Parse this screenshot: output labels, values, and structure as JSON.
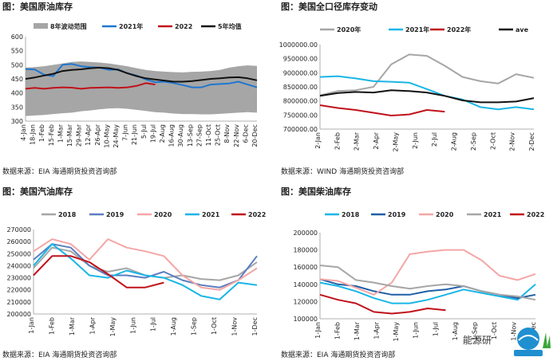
{
  "colors": {
    "bg": "#ffffff",
    "axis": "#999999",
    "grid": "#eeeeee"
  },
  "charts": [
    {
      "id": "c1",
      "title": "图：美国原油库存",
      "source": "数据来源：EIA  海通期货投资咨询部",
      "type": "line",
      "ylim": [
        300,
        600
      ],
      "yticks": [
        300,
        350,
        400,
        450,
        500,
        550,
        600
      ],
      "xlabels": [
        "4-Jan",
        "18-Jan",
        "1-Feb",
        "15-Feb",
        "1-Mar",
        "15-Mar",
        "29-Mar",
        "12-Apr",
        "26-Apr",
        "10-May",
        "24-May",
        "7-Jun",
        "21-Jun",
        "5-Jul",
        "19-Jul",
        "2-Aug",
        "16-Aug",
        "30-Aug",
        "13-Sep",
        "27-Sep",
        "11-Oct",
        "25-Oct",
        "8-Nov",
        "22-Nov",
        "6-Dec",
        "20-Dec"
      ],
      "xlabel_rotate": true,
      "band": {
        "name": "8年波动范围",
        "color": "#a6a6a6",
        "lo": [
          318,
          320,
          322,
          325,
          328,
          330,
          335,
          338,
          342,
          345,
          346,
          344,
          340,
          336,
          332,
          330,
          327,
          325,
          325,
          324,
          324,
          326,
          328,
          330,
          332,
          330
        ],
        "hi": [
          490,
          492,
          495,
          500,
          505,
          510,
          512,
          510,
          508,
          505,
          500,
          495,
          488,
          482,
          478,
          476,
          474,
          473,
          475,
          476,
          478,
          482,
          490,
          495,
          498,
          496
        ]
      },
      "series": [
        {
          "name": "2021年",
          "color": "#1f77d0",
          "width": 2,
          "values": [
            485,
            483,
            465,
            460,
            500,
            503,
            495,
            492,
            490,
            482,
            484,
            470,
            462,
            448,
            438,
            440,
            435,
            428,
            420,
            420,
            430,
            432,
            434,
            440,
            430,
            420
          ]
        },
        {
          "name": "2022",
          "color": "#c0121b",
          "width": 2,
          "values": [
            415,
            418,
            415,
            418,
            420,
            419,
            415,
            418,
            419,
            420,
            418,
            420,
            425,
            435,
            430
          ]
        },
        {
          "name": "5年均值",
          "color": "#111111",
          "width": 2,
          "values": [
            450,
            455,
            462,
            468,
            478,
            482,
            484,
            488,
            490,
            488,
            482,
            470,
            460,
            452,
            448,
            444,
            440,
            440,
            442,
            446,
            450,
            452,
            455,
            456,
            452,
            445
          ]
        }
      ],
      "legend": [
        "8年波动范围",
        "2021年",
        "2022",
        "5年均值"
      ]
    },
    {
      "id": "c2",
      "title": "图：美国全口径库存变动",
      "source": "数据来源：WIND  海通期货投资咨询部",
      "type": "line",
      "ylim": [
        700000,
        1000000
      ],
      "yticks": [
        700000,
        750000,
        800000,
        850000,
        900000,
        950000,
        1000000
      ],
      "ytickLabels": [
        "700000.00",
        "750000.00",
        "800000.00",
        "850000.00",
        "900000.00",
        "950000.00",
        "1000000.00"
      ],
      "xlabels": [
        "2-Jan",
        "2-Feb",
        "2-Mar",
        "2-Apr",
        "2-May",
        "2-Jun",
        "2-Jul",
        "2-Aug",
        "2-Sep",
        "2-Oct",
        "2-Nov",
        "2-Dec"
      ],
      "xlabel_rotate": true,
      "series": [
        {
          "name": "2020年",
          "color": "#a6a6a6",
          "width": 2,
          "values": [
            820000,
            835000,
            838000,
            850000,
            930000,
            965000,
            960000,
            925000,
            885000,
            870000,
            862000,
            895000,
            882000
          ]
        },
        {
          "name": "2021年",
          "color": "#19b6e6",
          "width": 2,
          "values": [
            885000,
            888000,
            880000,
            870000,
            868000,
            865000,
            842000,
            818000,
            805000,
            778000,
            770000,
            778000,
            770000
          ]
        },
        {
          "name": "2022年",
          "color": "#c0121b",
          "width": 2,
          "values": [
            785000,
            775000,
            768000,
            758000,
            748000,
            752000,
            768000,
            762000
          ]
        },
        {
          "name": "ave",
          "color": "#111111",
          "width": 2,
          "values": [
            818000,
            828000,
            832000,
            830000,
            838000,
            835000,
            830000,
            818000,
            802000,
            795000,
            795000,
            798000,
            810000
          ]
        }
      ],
      "legend": [
        "2020年",
        "2021年",
        "2022年",
        "ave"
      ]
    },
    {
      "id": "c3",
      "title": "图：美国汽油库存",
      "source": "数据来源：EIA  海通期货投资咨询部",
      "type": "line",
      "ylim": [
        200000,
        270000
      ],
      "yticks": [
        200000,
        210000,
        220000,
        230000,
        240000,
        250000,
        260000,
        270000
      ],
      "xlabels": [
        "1-Jan",
        "1-Feb",
        "1-Mar",
        "1-Apr",
        "1-May",
        "1-Jun",
        "1-Jul",
        "1-Aug",
        "1-Sep",
        "1-Oct",
        "1-Nov",
        "1-Dec"
      ],
      "xlabel_rotate": true,
      "series": [
        {
          "name": "2018",
          "color": "#a6a6a6",
          "width": 2,
          "values": [
            238000,
            255000,
            252000,
            240000,
            235000,
            238000,
            232000,
            230000,
            232000,
            229000,
            228000,
            232000,
            243000
          ]
        },
        {
          "name": "2019",
          "color": "#5b7ec0",
          "width": 2,
          "values": [
            245000,
            258000,
            255000,
            240000,
            232000,
            232000,
            230000,
            235000,
            228000,
            224000,
            222000,
            228000,
            248000
          ]
        },
        {
          "name": "2020",
          "color": "#f4a6a6",
          "width": 2,
          "values": [
            252000,
            262000,
            258000,
            245000,
            262000,
            255000,
            252000,
            248000,
            232000,
            222000,
            220000,
            228000,
            238000
          ]
        },
        {
          "name": "2021",
          "color": "#19b6e6",
          "width": 2,
          "values": [
            240000,
            258000,
            246000,
            232000,
            230000,
            236000,
            232000,
            230000,
            224000,
            215000,
            212000,
            226000,
            224000
          ]
        },
        {
          "name": "2022",
          "color": "#c0121b",
          "width": 2,
          "values": [
            232000,
            248000,
            248000,
            243000,
            233000,
            222000,
            222000,
            226000
          ]
        }
      ],
      "legend": [
        "2018",
        "2019",
        "2020",
        "2021",
        "2022"
      ]
    },
    {
      "id": "c4",
      "title": "图：美国柴油库存",
      "source": "数据来源：EIA  海通期货投资咨询部",
      "type": "line",
      "ylim": [
        100000,
        200000
      ],
      "yticks": [
        100000,
        120000,
        140000,
        160000,
        180000,
        200000
      ],
      "xlabels": [
        "1-Jan",
        "1-Feb",
        "1-Mar",
        "1-Apr",
        "1-May",
        "1-Jun",
        "1-Jul",
        "1-Aug",
        "1-Sep",
        "1-Oct",
        "1-Nov",
        "1-Dec"
      ],
      "xlabel_rotate": true,
      "series": [
        {
          "name": "2018",
          "color": "#19b6e6",
          "width": 2,
          "values": [
            142000,
            138000,
            132000,
            124000,
            118000,
            118000,
            122000,
            128000,
            134000,
            130000,
            126000,
            122000,
            140000
          ]
        },
        {
          "name": "2019",
          "color": "#1f5fa8",
          "width": 2,
          "values": [
            146000,
            140000,
            138000,
            132000,
            128000,
            128000,
            132000,
            134000,
            138000,
            132000,
            128000,
            124000,
            128000
          ]
        },
        {
          "name": "2020",
          "color": "#f4a6a6",
          "width": 2,
          "values": [
            146000,
            144000,
            136000,
            128000,
            142000,
            175000,
            178000,
            180000,
            180000,
            168000,
            150000,
            145000,
            152000
          ]
        },
        {
          "name": "2021",
          "color": "#a6a6a6",
          "width": 2,
          "values": [
            162000,
            160000,
            145000,
            142000,
            138000,
            135000,
            138000,
            140000,
            138000,
            132000,
            128000,
            126000,
            122000
          ]
        },
        {
          "name": "2022",
          "color": "#c0121b",
          "width": 2,
          "values": [
            128000,
            122000,
            118000,
            108000,
            106000,
            108000,
            112000,
            110000
          ]
        }
      ],
      "legend": [
        "2018",
        "2019",
        "2020",
        "2021",
        "2022"
      ]
    }
  ],
  "watermark": {
    "text": "能源研"
  }
}
